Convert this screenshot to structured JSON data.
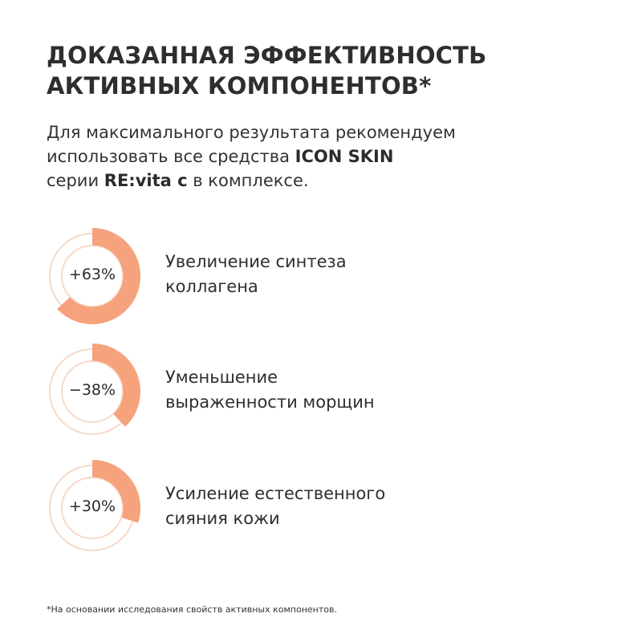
{
  "heading": {
    "line1": "ДОКАЗАННАЯ ЭФФЕКТИВНОСТЬ",
    "line2": "АКТИВНЫХ КОМПОНЕНТОВ*"
  },
  "intro": {
    "line1": "Для максимального результата рекомендуем",
    "line2_pre": "использовать все средства ",
    "line2_bold": "ICON SKIN",
    "line3_pre": "серии ",
    "line3_bold": "RE:vita c",
    "line3_post": " в комплексе."
  },
  "colors": {
    "accent": "#F5A27D",
    "track": "#F7D9C8"
  },
  "metrics": [
    {
      "value_label": "+63%",
      "fraction": 0.63,
      "label_line1": "Увеличение синтеза",
      "label_line2": "коллагена"
    },
    {
      "value_label": "−38%",
      "fraction": 0.38,
      "label_line1": "Уменьшение",
      "label_line2": "выраженности морщин"
    },
    {
      "value_label": "+30%",
      "fraction": 0.3,
      "label_line1": "Усиление естественного",
      "label_line2": "сияния кожи"
    }
  ],
  "footnote": "*На основании исследования свойств активных компонентов."
}
